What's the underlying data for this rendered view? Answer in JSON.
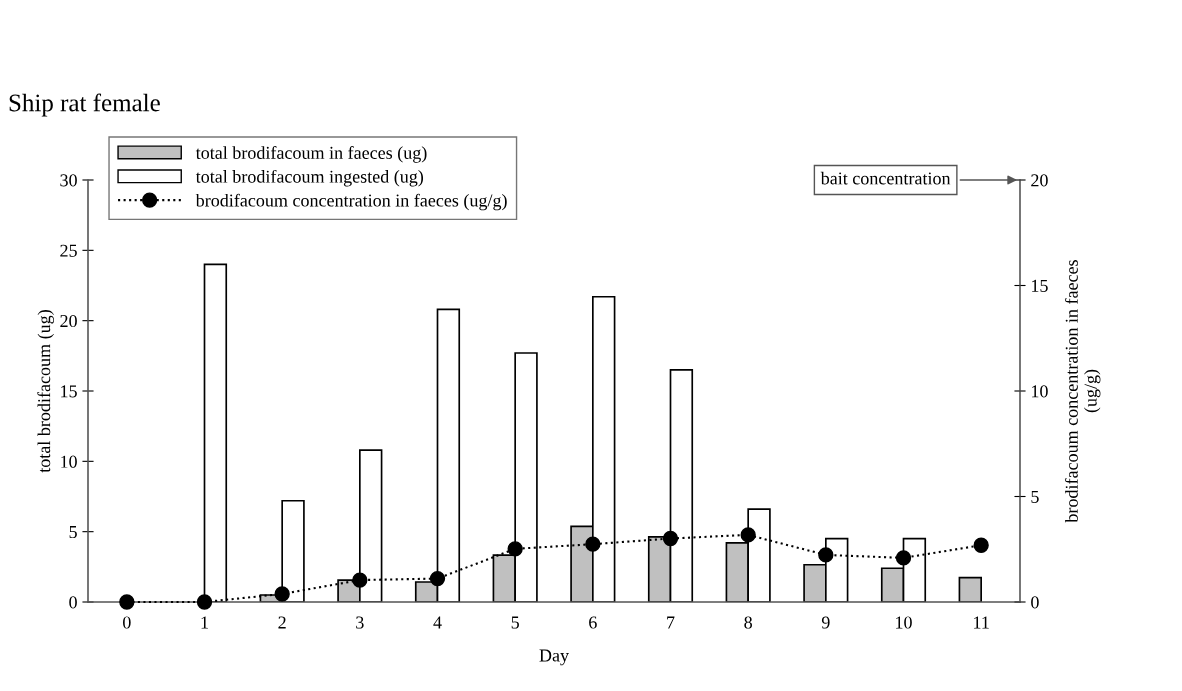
{
  "chart_data": {
    "type": "bar",
    "title": "Ship rat female",
    "xlabel": "Day",
    "ylabel": "total brodifacoum (ug)",
    "y2label": "brodifacoum concentration in faeces\n(ug/g)",
    "categories": [
      "0",
      "1",
      "2",
      "3",
      "4",
      "5",
      "6",
      "7",
      "8",
      "9",
      "10",
      "11"
    ],
    "series": [
      {
        "name": "total brodifacoum in faeces (ug)",
        "color": "#c0c0c0",
        "values": [
          null,
          null,
          0.5,
          1.56,
          1.42,
          3.33,
          5.38,
          4.63,
          4.2,
          2.65,
          2.4,
          1.73
        ]
      },
      {
        "name": "total brodifacoum ingested (ug)",
        "color": "#ffffff",
        "values": [
          null,
          24.0,
          7.2,
          10.8,
          20.8,
          17.7,
          21.7,
          16.5,
          6.6,
          4.5,
          4.5,
          null
        ]
      },
      {
        "name": "brodifacoum concentration in faeces (ug/g)",
        "type": "line",
        "axis": "y2",
        "color": "#000000",
        "marker": "circle",
        "line_style": "dotted",
        "values": [
          0,
          0,
          0.38,
          1.04,
          1.11,
          2.52,
          2.74,
          3.01,
          3.18,
          2.23,
          2.09,
          2.69
        ]
      }
    ],
    "ylim": [
      0,
      30
    ],
    "yticks": [
      0,
      5,
      10,
      15,
      20,
      25,
      30
    ],
    "y2lim": [
      0,
      20
    ],
    "y2ticks": [
      0,
      5,
      10,
      15,
      20
    ],
    "annotations": [
      "bait concentration"
    ],
    "legend": "top left",
    "grid": false
  }
}
